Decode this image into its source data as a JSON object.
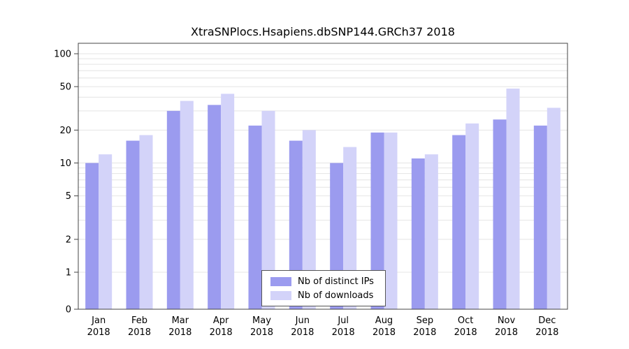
{
  "title": "XtraSNPlocs.Hsapiens.dbSNP144.GRCh37 2018",
  "colors": {
    "ips_bar": "#9b9bef",
    "downloads_bar": "#d3d3f9",
    "gridline": "#e4e4e4",
    "axis": "#444444",
    "text": "#000000"
  },
  "chart_data": {
    "type": "bar",
    "title": "XtraSNPlocs.Hsapiens.dbSNP144.GRCh37 2018",
    "scale": "log",
    "categories": [
      "Jan",
      "Feb",
      "Mar",
      "Apr",
      "May",
      "Jun",
      "Jul",
      "Aug",
      "Sep",
      "Oct",
      "Nov",
      "Dec"
    ],
    "year_label": "2018",
    "series": [
      {
        "name": "Nb of distinct IPs",
        "color": "#9b9bef",
        "values": [
          10,
          16,
          30,
          34,
          22,
          16,
          10,
          19,
          11,
          18,
          25,
          22
        ]
      },
      {
        "name": "Nb of downloads",
        "color": "#d3d3f9",
        "values": [
          12,
          18,
          37,
          43,
          30,
          20,
          14,
          19,
          12,
          23,
          48,
          32
        ]
      }
    ],
    "y_ticks": [
      100,
      50,
      20,
      10,
      5,
      2,
      1,
      0
    ],
    "grid_values": [
      1,
      2,
      3,
      4,
      5,
      6,
      7,
      8,
      9,
      10,
      20,
      30,
      40,
      50,
      60,
      70,
      80,
      90,
      100
    ],
    "ylim": [
      0,
      100
    ],
    "xlabel": "",
    "ylabel": "",
    "grid": true,
    "legend_position": "bottom-center"
  }
}
